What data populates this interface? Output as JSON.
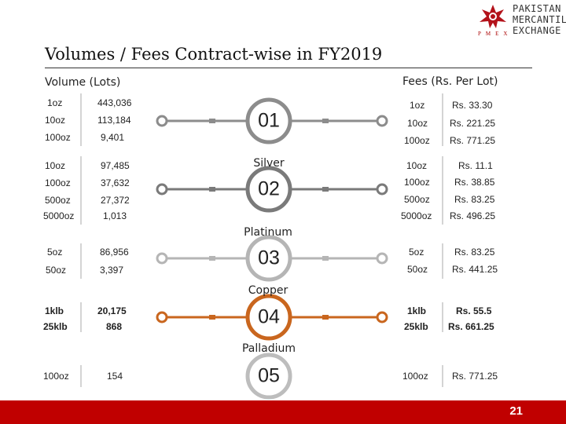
{
  "slide": {
    "title": "Volumes / Fees Contract-wise in FY2019",
    "page_number": "21",
    "accent_color": "#c00000"
  },
  "logo": {
    "line1": "PAKISTAN",
    "line2": "MERCANTILE",
    "line3": "EXCHANGE",
    "sub": "PMEX"
  },
  "headers": {
    "volume": "Volume (Lots)",
    "fees": "Fees (Rs. Per Lot)"
  },
  "groups": [
    {
      "number": "01",
      "name": "",
      "color": "#8c8c8c",
      "volumes": [
        {
          "size": "1oz",
          "lots": "443,036"
        },
        {
          "size": "10oz",
          "lots": "113,184"
        },
        {
          "size": "100oz",
          "lots": "9,401"
        }
      ],
      "fees": [
        {
          "size": "1oz",
          "fee": "Rs. 33.30"
        },
        {
          "size": "10oz",
          "fee": "Rs. 221.25"
        },
        {
          "size": "100oz",
          "fee": "Rs. 771.25"
        }
      ]
    },
    {
      "number": "02",
      "name": "Silver",
      "color": "#7a7a7a",
      "volumes": [
        {
          "size": "10oz",
          "lots": "97,485"
        },
        {
          "size": "100oz",
          "lots": "37,632"
        },
        {
          "size": "500oz",
          "lots": "27,372"
        },
        {
          "size": "5000oz",
          "lots": "1,013"
        }
      ],
      "fees": [
        {
          "size": "10oz",
          "fee": "Rs. 11.1"
        },
        {
          "size": "100oz",
          "fee": "Rs. 38.85"
        },
        {
          "size": "500oz",
          "fee": "Rs. 83.25"
        },
        {
          "size": "5000oz",
          "fee": "Rs. 496.25"
        }
      ]
    },
    {
      "number": "03",
      "name": "Platinum",
      "color": "#b5b5b5",
      "volumes": [
        {
          "size": "5oz",
          "lots": "86,956"
        },
        {
          "size": "50oz",
          "lots": "3,397"
        }
      ],
      "fees": [
        {
          "size": "5oz",
          "fee": "Rs. 83.25"
        },
        {
          "size": "50oz",
          "fee": "Rs. 441.25"
        }
      ]
    },
    {
      "number": "04",
      "name": "Copper",
      "color": "#c9661e",
      "volumes": [
        {
          "size": "1klb",
          "lots": "20,175"
        },
        {
          "size": "25klb",
          "lots": "868"
        }
      ],
      "fees": [
        {
          "size": "1klb",
          "fee": "Rs. 55.5"
        },
        {
          "size": "25klb",
          "fee": "Rs. 661.25"
        }
      ]
    },
    {
      "number": "05",
      "name": "Palladium",
      "color": "#bdbdbd",
      "volumes": [
        {
          "size": "100oz",
          "lots": "154"
        }
      ],
      "fees": [
        {
          "size": "100oz",
          "fee": "Rs. 771.25"
        }
      ]
    }
  ]
}
